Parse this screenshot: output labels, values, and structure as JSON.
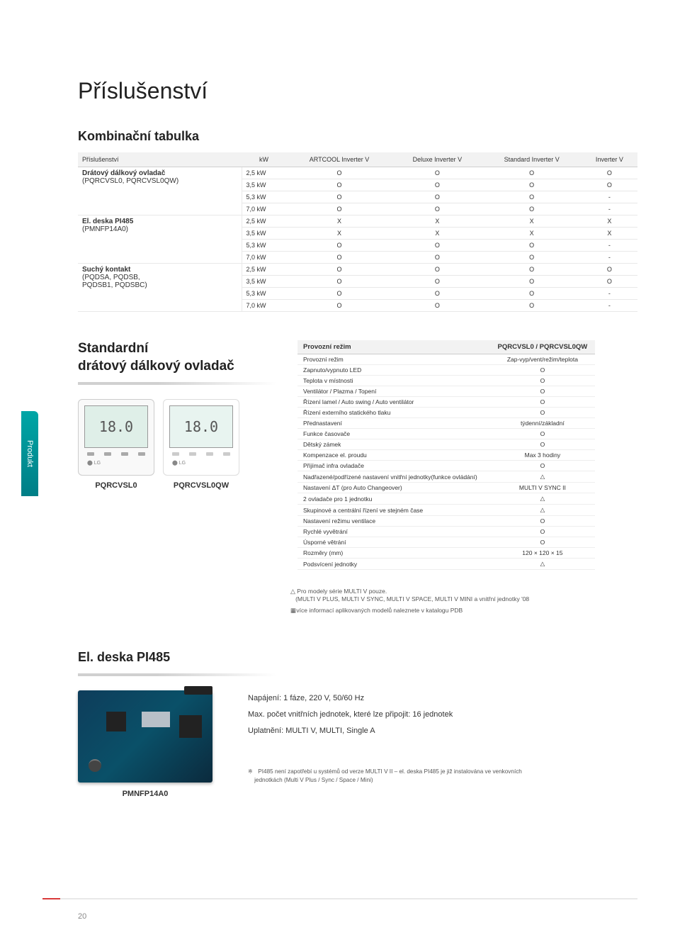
{
  "page_title": "Příslušenství",
  "section1_title": "Kombinační tabulka",
  "combo": {
    "headers": [
      "Příslušenství",
      "kW",
      "ARTCOOL Inverter V",
      "Deluxe Inverter V",
      "Standard Inverter V",
      "Inverter V"
    ],
    "groups": [
      {
        "label": "Drátový dálkový ovladač",
        "sublabel": "(PQRCVSL0, PQRCVSL0QW)",
        "rows": [
          {
            "kw": "2,5 kW",
            "vals": [
              "O",
              "O",
              "O",
              "O"
            ]
          },
          {
            "kw": "3,5 kW",
            "vals": [
              "O",
              "O",
              "O",
              "O"
            ]
          },
          {
            "kw": "5,3 kW",
            "vals": [
              "O",
              "O",
              "O",
              "-"
            ]
          },
          {
            "kw": "7,0 kW",
            "vals": [
              "O",
              "O",
              "O",
              "-"
            ]
          }
        ]
      },
      {
        "label": "El. deska PI485",
        "sublabel": "(PMNFP14A0)",
        "rows": [
          {
            "kw": "2,5 kW",
            "vals": [
              "X",
              "X",
              "X",
              "X"
            ]
          },
          {
            "kw": "3,5 kW",
            "vals": [
              "X",
              "X",
              "X",
              "X"
            ]
          },
          {
            "kw": "5,3 kW",
            "vals": [
              "O",
              "O",
              "O",
              "-"
            ]
          },
          {
            "kw": "7,0 kW",
            "vals": [
              "O",
              "O",
              "O",
              "-"
            ]
          }
        ]
      },
      {
        "label": "Suchý kontakt",
        "sublabel": "(PQDSA, PQDSB,",
        "sublabel2": "PQDSB1, PQDSBC)",
        "rows": [
          {
            "kw": "2,5 kW",
            "vals": [
              "O",
              "O",
              "O",
              "O"
            ]
          },
          {
            "kw": "3,5 kW",
            "vals": [
              "O",
              "O",
              "O",
              "O"
            ]
          },
          {
            "kw": "5,3 kW",
            "vals": [
              "O",
              "O",
              "O",
              "-"
            ]
          },
          {
            "kw": "7,0 kW",
            "vals": [
              "O",
              "O",
              "O",
              "-"
            ]
          }
        ]
      }
    ]
  },
  "section2_title_l1": "Standardní",
  "section2_title_l2": "drátový dálkový ovladač",
  "side_tab": "Produkt",
  "remote1": {
    "label": "PQRCVSL0",
    "display": "18.0"
  },
  "remote2": {
    "label": "PQRCVSL0QW",
    "display": "18.0"
  },
  "feature_table": {
    "header_left": "Provozní režim",
    "header_right": "PQRCVSL0 / PQRCVSL0QW",
    "rows": [
      {
        "f": "Provozní režim",
        "v": "Zap-vyp/vent/režim/teplota"
      },
      {
        "f": "Zapnuto/vypnuto LED",
        "v": "O"
      },
      {
        "f": "Teplota v místnosti",
        "v": "O"
      },
      {
        "f": "Ventilátor / Plazma / Topení",
        "v": "O"
      },
      {
        "f": "Řízení lamel / Auto swing / Auto ventilátor",
        "v": "O"
      },
      {
        "f": "Řízení externího statického tlaku",
        "v": "O"
      },
      {
        "f": "Přednastavení",
        "v": "týdenní/základní"
      },
      {
        "f": "Funkce časovače",
        "v": "O"
      },
      {
        "f": "Dětský zámek",
        "v": "O"
      },
      {
        "f": "Kompenzace el. proudu",
        "v": "Max 3 hodiny"
      },
      {
        "f": "Přijímač infra ovladače",
        "v": "O"
      },
      {
        "f": "Nadřazené/podřízené nastavení vnitřní jednotky(funkce ovládání)",
        "v": "△"
      },
      {
        "f": "Nastavení ΔT (pro Auto Changeover)",
        "v": "MULTI V SYNC II"
      },
      {
        "f": "2 ovladače pro 1 jednotku",
        "v": "△"
      },
      {
        "f": "Skupinové a centrální řízení ve stejném čase",
        "v": "△"
      },
      {
        "f": "Nastavení režimu ventilace",
        "v": "O"
      },
      {
        "f": "Rychlé vyvětrání",
        "v": "O"
      },
      {
        "f": "Úsporné větrání",
        "v": "O"
      },
      {
        "f": "Rozměry (mm)",
        "v": "120 × 120 × 15"
      },
      {
        "f": "Podsvícení jednotky",
        "v": "△"
      }
    ]
  },
  "note1": "Pro modely série MULTI V pouze.",
  "note1b": "(MULTI V PLUS, MULTI V SYNC, MULTI V SPACE, MULTI V MINI a vnitřní jednotky '08",
  "note2": "více informací aplikovaných modelů naleznete v katalogu PDB",
  "section3_title": "El. deska PI485",
  "pi_label": "PMNFP14A0",
  "pi_specs": {
    "s1": "Napájení: 1 fáze, 220 V, 50/60 Hz",
    "s2": "Max. počet vnitřních jednotek, které lze připojit: 16 jednotek",
    "s3": "Uplatnění: MULTI V, MULTI, Single A"
  },
  "pi_note_a": "PI485 není zapotřebí u systémů od verze MULTI V II – el. deska PI485 je již instalována ve venkovních",
  "pi_note_b": "jednotkách (Multi V Plus / Sync / Space / Mini)",
  "page_number": "20"
}
